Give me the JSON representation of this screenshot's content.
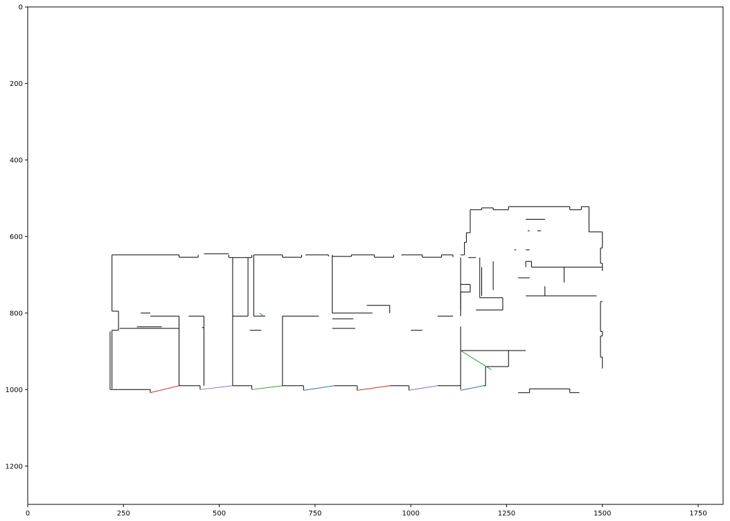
{
  "chart_data": {
    "type": "line",
    "title": "",
    "xlabel": "",
    "ylabel": "",
    "xlim": [
      0,
      1815
    ],
    "ylim": [
      1300,
      0
    ],
    "y_inverted": true,
    "grid": false,
    "xticks": [
      0,
      250,
      500,
      750,
      1000,
      1250,
      1500,
      1750
    ],
    "yticks": [
      0,
      200,
      400,
      600,
      800,
      1000,
      1200
    ],
    "line_color": "#000000",
    "accent_colors": [
      "#2ca02c",
      "#9467bd",
      "#d62728",
      "#1f77b4"
    ],
    "segments": [
      [
        [
          220,
          648
        ],
        [
          395,
          648
        ]
      ],
      [
        [
          395,
          648
        ],
        [
          395,
          654
        ]
      ],
      [
        [
          395,
          654
        ],
        [
          445,
          654
        ]
      ],
      [
        [
          445,
          654
        ],
        [
          445,
          648
        ]
      ],
      [
        [
          460,
          645
        ],
        [
          525,
          645
        ]
      ],
      [
        [
          525,
          648
        ],
        [
          525,
          655
        ]
      ],
      [
        [
          525,
          655
        ],
        [
          585,
          655
        ]
      ],
      [
        [
          585,
          655
        ],
        [
          585,
          648
        ]
      ],
      [
        [
          590,
          648
        ],
        [
          665,
          648
        ]
      ],
      [
        [
          665,
          648
        ],
        [
          665,
          654
        ]
      ],
      [
        [
          665,
          654
        ],
        [
          715,
          654
        ]
      ],
      [
        [
          715,
          654
        ],
        [
          715,
          648
        ]
      ],
      [
        [
          725,
          648
        ],
        [
          785,
          648
        ]
      ],
      [
        [
          785,
          648
        ],
        [
          785,
          652
        ]
      ],
      [
        [
          795,
          652
        ],
        [
          845,
          652
        ]
      ],
      [
        [
          845,
          648
        ],
        [
          845,
          652
        ]
      ],
      [
        [
          845,
          648
        ],
        [
          905,
          648
        ]
      ],
      [
        [
          905,
          648
        ],
        [
          905,
          654
        ]
      ],
      [
        [
          905,
          654
        ],
        [
          955,
          654
        ]
      ],
      [
        [
          955,
          654
        ],
        [
          955,
          648
        ]
      ],
      [
        [
          975,
          648
        ],
        [
          1030,
          648
        ]
      ],
      [
        [
          1030,
          648
        ],
        [
          1030,
          654
        ]
      ],
      [
        [
          1030,
          654
        ],
        [
          1080,
          654
        ]
      ],
      [
        [
          1080,
          654
        ],
        [
          1080,
          648
        ]
      ],
      [
        [
          1080,
          648
        ],
        [
          1110,
          648
        ]
      ],
      [
        [
          1110,
          648
        ],
        [
          1110,
          654
        ]
      ],
      [
        [
          220,
          648
        ],
        [
          220,
          795
        ]
      ],
      [
        [
          220,
          795
        ],
        [
          237,
          795
        ]
      ],
      [
        [
          237,
          795
        ],
        [
          237,
          845
        ]
      ],
      [
        [
          237,
          845
        ],
        [
          220,
          845
        ]
      ],
      [
        [
          220,
          845
        ],
        [
          220,
          998
        ]
      ],
      [
        [
          215,
          848
        ],
        [
          215,
          1000
        ]
      ],
      [
        [
          215,
          1000
        ],
        [
          320,
          1000
        ]
      ],
      [
        [
          320,
          1000
        ],
        [
          320,
          1008
        ]
      ],
      [
        [
          320,
          1008
        ],
        [
          395,
          990
        ]
      ],
      [
        [
          395,
          990
        ],
        [
          450,
          990
        ]
      ],
      [
        [
          450,
          990
        ],
        [
          450,
          1000
        ]
      ],
      [
        [
          450,
          1000
        ],
        [
          535,
          990
        ]
      ],
      [
        [
          535,
          990
        ],
        [
          585,
          990
        ]
      ],
      [
        [
          585,
          990
        ],
        [
          585,
          1000
        ]
      ],
      [
        [
          585,
          1000
        ],
        [
          665,
          990
        ]
      ],
      [
        [
          665,
          990
        ],
        [
          720,
          990
        ]
      ],
      [
        [
          720,
          990
        ],
        [
          720,
          1002
        ]
      ],
      [
        [
          720,
          1002
        ],
        [
          800,
          990
        ]
      ],
      [
        [
          800,
          990
        ],
        [
          860,
          990
        ]
      ],
      [
        [
          860,
          990
        ],
        [
          860,
          1002
        ]
      ],
      [
        [
          860,
          1002
        ],
        [
          945,
          990
        ]
      ],
      [
        [
          945,
          990
        ],
        [
          995,
          990
        ]
      ],
      [
        [
          995,
          990
        ],
        [
          995,
          1002
        ]
      ],
      [
        [
          995,
          1002
        ],
        [
          1070,
          990
        ]
      ],
      [
        [
          1070,
          990
        ],
        [
          1130,
          990
        ]
      ],
      [
        [
          1130,
          1002
        ],
        [
          1190,
          990
        ]
      ],
      [
        [
          1190,
          990
        ],
        [
          1195,
          990
        ]
      ],
      [
        [
          1195,
          990
        ],
        [
          1195,
          940
        ]
      ],
      [
        [
          1195,
          940
        ],
        [
          1255,
          940
        ]
      ],
      [
        [
          1255,
          940
        ],
        [
          1255,
          898
        ]
      ],
      [
        [
          1130,
          648
        ],
        [
          1140,
          648
        ]
      ],
      [
        [
          1140,
          648
        ],
        [
          1140,
          615
        ]
      ],
      [
        [
          1140,
          615
        ],
        [
          1145,
          615
        ]
      ],
      [
        [
          1145,
          615
        ],
        [
          1145,
          590
        ]
      ],
      [
        [
          1145,
          590
        ],
        [
          1155,
          590
        ]
      ],
      [
        [
          1155,
          590
        ],
        [
          1155,
          530
        ]
      ],
      [
        [
          1155,
          530
        ],
        [
          1185,
          530
        ]
      ],
      [
        [
          1185,
          530
        ],
        [
          1185,
          525
        ]
      ],
      [
        [
          1185,
          525
        ],
        [
          1215,
          525
        ]
      ],
      [
        [
          1215,
          525
        ],
        [
          1215,
          530
        ]
      ],
      [
        [
          1215,
          530
        ],
        [
          1255,
          530
        ]
      ],
      [
        [
          1255,
          530
        ],
        [
          1255,
          522
        ]
      ],
      [
        [
          1255,
          522
        ],
        [
          1415,
          522
        ]
      ],
      [
        [
          1415,
          522
        ],
        [
          1415,
          530
        ]
      ],
      [
        [
          1415,
          530
        ],
        [
          1445,
          530
        ]
      ],
      [
        [
          1445,
          530
        ],
        [
          1445,
          522
        ]
      ],
      [
        [
          1445,
          522
        ],
        [
          1465,
          522
        ]
      ],
      [
        [
          1465,
          522
        ],
        [
          1465,
          588
        ]
      ],
      [
        [
          1465,
          588
        ],
        [
          1500,
          588
        ]
      ],
      [
        [
          1500,
          588
        ],
        [
          1500,
          630
        ]
      ],
      [
        [
          1500,
          630
        ],
        [
          1495,
          630
        ]
      ],
      [
        [
          1495,
          630
        ],
        [
          1495,
          670
        ]
      ],
      [
        [
          1495,
          670
        ],
        [
          1500,
          670
        ]
      ],
      [
        [
          1500,
          670
        ],
        [
          1500,
          690
        ]
      ],
      [
        [
          1500,
          770
        ],
        [
          1495,
          770
        ]
      ],
      [
        [
          1495,
          770
        ],
        [
          1495,
          848
        ]
      ],
      [
        [
          1495,
          848
        ],
        [
          1500,
          848
        ]
      ],
      [
        [
          1500,
          848
        ],
        [
          1500,
          860
        ]
      ],
      [
        [
          1500,
          860
        ],
        [
          1495,
          860
        ]
      ],
      [
        [
          1495,
          860
        ],
        [
          1495,
          915
        ]
      ],
      [
        [
          1495,
          915
        ],
        [
          1500,
          915
        ]
      ],
      [
        [
          1500,
          915
        ],
        [
          1500,
          945
        ]
      ],
      [
        [
          1280,
          1008
        ],
        [
          1310,
          1008
        ]
      ],
      [
        [
          1310,
          1008
        ],
        [
          1310,
          998
        ]
      ],
      [
        [
          1310,
          998
        ],
        [
          1415,
          998
        ]
      ],
      [
        [
          1415,
          998
        ],
        [
          1415,
          1008
        ]
      ],
      [
        [
          1415,
          1008
        ],
        [
          1440,
          1008
        ]
      ],
      [
        [
          1130,
          655
        ],
        [
          1130,
          795
        ]
      ],
      [
        [
          1130,
          725
        ],
        [
          1155,
          725
        ]
      ],
      [
        [
          1155,
          725
        ],
        [
          1155,
          745
        ]
      ],
      [
        [
          1155,
          745
        ],
        [
          1130,
          745
        ]
      ],
      [
        [
          1130,
          745
        ],
        [
          1130,
          808
        ]
      ],
      [
        [
          1130,
          835
        ],
        [
          1130,
          1000
        ]
      ],
      [
        [
          1150,
          655
        ],
        [
          1170,
          655
        ]
      ],
      [
        [
          1180,
          655
        ],
        [
          1180,
          760
        ]
      ],
      [
        [
          1180,
          760
        ],
        [
          1240,
          760
        ]
      ],
      [
        [
          1240,
          760
        ],
        [
          1240,
          792
        ]
      ],
      [
        [
          1240,
          792
        ],
        [
          1170,
          792
        ]
      ],
      [
        [
          1185,
          680
        ],
        [
          1185,
          755
        ]
      ],
      [
        [
          1215,
          665
        ],
        [
          1215,
          740
        ]
      ],
      [
        [
          1300,
          555
        ],
        [
          1350,
          555
        ]
      ],
      [
        [
          1305,
          585
        ],
        [
          1310,
          585
        ]
      ],
      [
        [
          1330,
          585
        ],
        [
          1340,
          585
        ]
      ],
      [
        [
          1270,
          635
        ],
        [
          1275,
          635
        ]
      ],
      [
        [
          1300,
          635
        ],
        [
          1310,
          635
        ]
      ],
      [
        [
          1300,
          665
        ],
        [
          1315,
          665
        ]
      ],
      [
        [
          1300,
          665
        ],
        [
          1300,
          680
        ]
      ],
      [
        [
          1315,
          665
        ],
        [
          1315,
          680
        ]
      ],
      [
        [
          1315,
          680
        ],
        [
          1500,
          680
        ]
      ],
      [
        [
          1400,
          680
        ],
        [
          1400,
          720
        ]
      ],
      [
        [
          1280,
          708
        ],
        [
          1310,
          708
        ]
      ],
      [
        [
          1350,
          730
        ],
        [
          1350,
          755
        ]
      ],
      [
        [
          1300,
          755
        ],
        [
          1485,
          755
        ]
      ],
      [
        [
          1130,
          898
        ],
        [
          1300,
          898
        ]
      ],
      [
        [
          1130,
          898
        ],
        [
          1210,
          948
        ]
      ],
      [
        [
          295,
          800
        ],
        [
          320,
          800
        ]
      ],
      [
        [
          320,
          808
        ],
        [
          395,
          808
        ]
      ],
      [
        [
          395,
          808
        ],
        [
          395,
          990
        ]
      ],
      [
        [
          240,
          840
        ],
        [
          395,
          840
        ]
      ],
      [
        [
          285,
          836
        ],
        [
          350,
          836
        ]
      ],
      [
        [
          420,
          808
        ],
        [
          460,
          808
        ]
      ],
      [
        [
          460,
          808
        ],
        [
          460,
          990
        ]
      ],
      [
        [
          455,
          838
        ],
        [
          460,
          838
        ]
      ],
      [
        [
          535,
          655
        ],
        [
          535,
          990
        ]
      ],
      [
        [
          575,
          655
        ],
        [
          575,
          808
        ]
      ],
      [
        [
          535,
          808
        ],
        [
          575,
          808
        ]
      ],
      [
        [
          590,
          648
        ],
        [
          590,
          808
        ]
      ],
      [
        [
          590,
          808
        ],
        [
          620,
          808
        ]
      ],
      [
        [
          580,
          845
        ],
        [
          610,
          845
        ]
      ],
      [
        [
          605,
          800
        ],
        [
          615,
          808
        ]
      ],
      [
        [
          665,
          808
        ],
        [
          735,
          808
        ]
      ],
      [
        [
          665,
          808
        ],
        [
          665,
          990
        ]
      ],
      [
        [
          735,
          808
        ],
        [
          760,
          808
        ]
      ],
      [
        [
          795,
          648
        ],
        [
          795,
          800
        ]
      ],
      [
        [
          795,
          800
        ],
        [
          855,
          800
        ]
      ],
      [
        [
          855,
          800
        ],
        [
          900,
          800
        ]
      ],
      [
        [
          795,
          815
        ],
        [
          840,
          815
        ]
      ],
      [
        [
          840,
          815
        ],
        [
          850,
          815
        ]
      ],
      [
        [
          885,
          780
        ],
        [
          945,
          780
        ]
      ],
      [
        [
          945,
          780
        ],
        [
          945,
          800
        ]
      ],
      [
        [
          795,
          840
        ],
        [
          855,
          840
        ]
      ],
      [
        [
          1000,
          845
        ],
        [
          1030,
          845
        ]
      ],
      [
        [
          1070,
          808
        ],
        [
          1110,
          808
        ]
      ]
    ]
  }
}
